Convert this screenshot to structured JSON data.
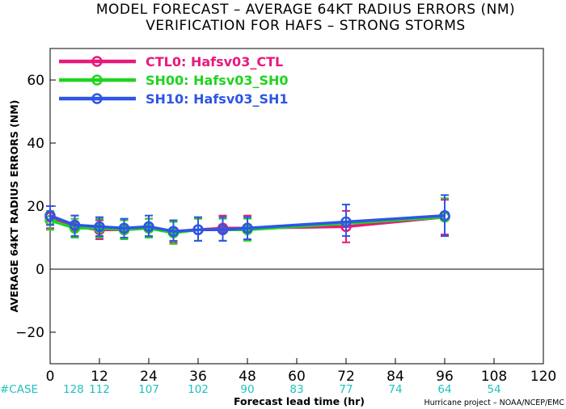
{
  "chart_data": {
    "type": "line",
    "title": "MODEL FORECAST – AVERAGE 64KT RADIUS ERRORS (NM)",
    "subtitle": "VERIFICATION FOR HAFS – STRONG STORMS",
    "xlabel": "Forecast lead time (hr)",
    "ylabel": "AVERAGE 64KT RADIUS ERRORS (NM)",
    "xlim": [
      0,
      120
    ],
    "ylim": [
      -30,
      70
    ],
    "xticks": [
      0,
      12,
      24,
      36,
      48,
      60,
      72,
      84,
      96,
      108,
      120
    ],
    "yticks": [
      -20,
      0,
      20,
      40,
      60
    ],
    "zero_line": true,
    "grid": false,
    "legend_position": "top-left",
    "series": [
      {
        "name": "CTL0: Hafsv03_CTL",
        "color": "#e8197d",
        "x": [
          0,
          6,
          12,
          18,
          24,
          30,
          36,
          42,
          48,
          72,
          96
        ],
        "values": [
          16.5,
          13.5,
          12.5,
          12.5,
          13.0,
          12.0,
          12.5,
          13.0,
          13.0,
          13.5,
          16.5
        ],
        "err_low": [
          13.0,
          10.0,
          9.5,
          9.5,
          10.0,
          8.5,
          9.0,
          9.0,
          9.5,
          8.5,
          11.0
        ],
        "err_high": [
          20.0,
          17.0,
          15.5,
          15.5,
          16.0,
          15.5,
          16.0,
          17.0,
          17.0,
          18.5,
          22.0
        ]
      },
      {
        "name": "SH00: Hafsv03_SH0",
        "color": "#1ed41e",
        "x": [
          0,
          6,
          12,
          18,
          24,
          30,
          36,
          42,
          48,
          96
        ],
        "values": [
          15.5,
          13.0,
          13.0,
          12.5,
          13.0,
          11.5,
          12.5,
          12.5,
          12.5,
          16.5
        ],
        "err_low": [
          12.5,
          10.0,
          10.0,
          9.5,
          10.0,
          8.0,
          9.0,
          9.0,
          9.0,
          10.5
        ],
        "err_high": [
          18.5,
          16.0,
          16.0,
          15.5,
          16.0,
          15.0,
          16.0,
          16.0,
          16.0,
          22.5
        ]
      },
      {
        "name": "SH10: Hafsv03_SH1",
        "color": "#2f55e6",
        "x": [
          0,
          6,
          12,
          18,
          24,
          30,
          36,
          42,
          48,
          72,
          96
        ],
        "values": [
          17.0,
          14.0,
          13.5,
          13.0,
          13.5,
          12.0,
          12.5,
          12.5,
          13.0,
          15.0,
          17.0
        ],
        "err_low": [
          14.0,
          10.5,
          10.5,
          10.0,
          10.5,
          9.0,
          9.0,
          9.0,
          9.5,
          10.5,
          10.5
        ],
        "err_high": [
          20.0,
          17.0,
          16.5,
          16.0,
          17.0,
          15.5,
          16.5,
          16.5,
          16.5,
          20.5,
          23.5
        ]
      }
    ],
    "case_label": "#CASE",
    "case_x": [
      0,
      12,
      24,
      36,
      48,
      60,
      72,
      84,
      96,
      108
    ],
    "case_counts": [
      "128",
      "112",
      "107",
      "102",
      "90",
      "83",
      "77",
      "74",
      "64",
      "54"
    ],
    "credit": "Hurricane project – NOAA/NCEP/EMC"
  }
}
